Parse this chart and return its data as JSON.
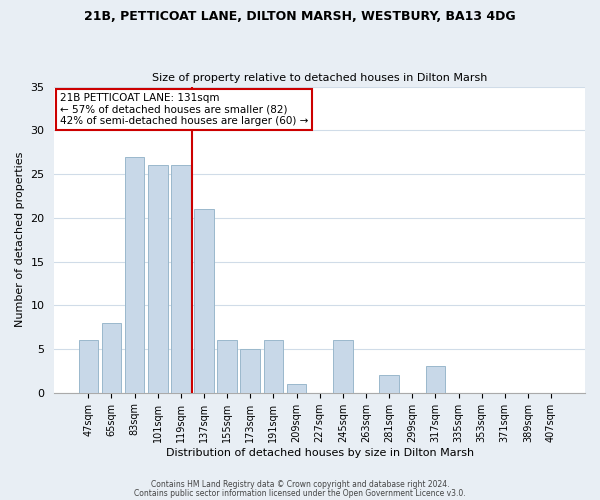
{
  "title1": "21B, PETTICOAT LANE, DILTON MARSH, WESTBURY, BA13 4DG",
  "title2": "Size of property relative to detached houses in Dilton Marsh",
  "xlabel": "Distribution of detached houses by size in Dilton Marsh",
  "ylabel": "Number of detached properties",
  "bin_labels": [
    "47sqm",
    "65sqm",
    "83sqm",
    "101sqm",
    "119sqm",
    "137sqm",
    "155sqm",
    "173sqm",
    "191sqm",
    "209sqm",
    "227sqm",
    "245sqm",
    "263sqm",
    "281sqm",
    "299sqm",
    "317sqm",
    "335sqm",
    "353sqm",
    "371sqm",
    "389sqm",
    "407sqm"
  ],
  "bar_heights": [
    6,
    8,
    27,
    26,
    26,
    21,
    6,
    5,
    6,
    1,
    0,
    6,
    0,
    2,
    0,
    3,
    0,
    0,
    0,
    0,
    0
  ],
  "bar_color": "#c8d8e8",
  "bar_edge_color": "#9ab8cc",
  "annotation_title": "21B PETTICOAT LANE: 131sqm",
  "annotation_line1": "← 57% of detached houses are smaller (82)",
  "annotation_line2": "42% of semi-detached houses are larger (60) →",
  "annotation_box_color": "#ffffff",
  "annotation_box_edge_color": "#cc0000",
  "vline_color": "#cc0000",
  "ylim": [
    0,
    35
  ],
  "yticks": [
    0,
    5,
    10,
    15,
    20,
    25,
    30,
    35
  ],
  "footer1": "Contains HM Land Registry data © Crown copyright and database right 2024.",
  "footer2": "Contains public sector information licensed under the Open Government Licence v3.0.",
  "figure_bg_color": "#e8eef4",
  "plot_bg_color": "#ffffff",
  "grid_color": "#d0dce8",
  "vline_x": 4.5
}
